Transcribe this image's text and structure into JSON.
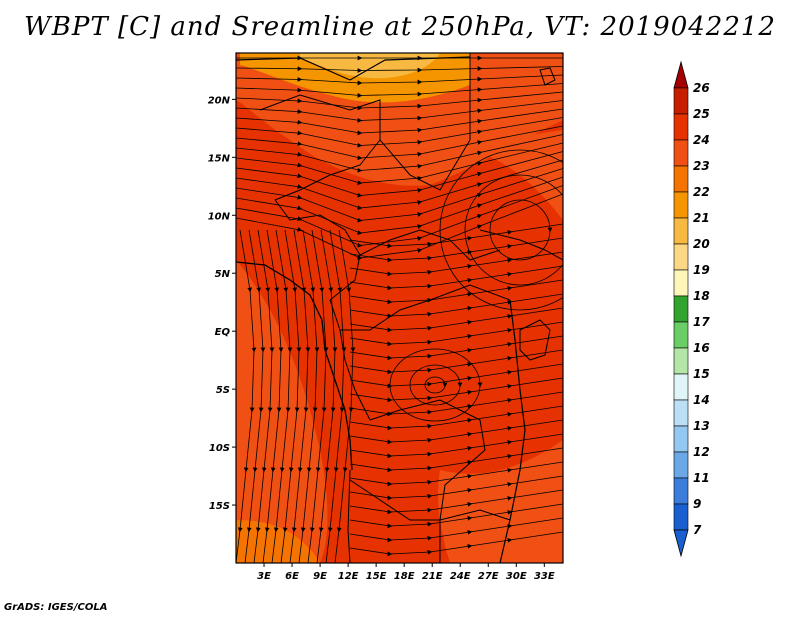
{
  "title": "WBPT [C] and Sreamline at 250hPa, VT: 2019042212",
  "credit": "GrADS: IGES/COLA",
  "axes": {
    "lat_labels": [
      "20N",
      "15N",
      "10N",
      "5N",
      "EQ",
      "5S",
      "10S",
      "15S"
    ],
    "lat_values": [
      20,
      15,
      10,
      5,
      0,
      -5,
      -10,
      -15
    ],
    "lon_labels": [
      "3E",
      "6E",
      "9E",
      "12E",
      "15E",
      "18E",
      "21E",
      "24E",
      "27E",
      "30E",
      "33E"
    ],
    "lon_values": [
      3,
      6,
      9,
      12,
      15,
      18,
      21,
      24,
      27,
      30,
      33
    ],
    "lon_range": [
      0,
      35
    ],
    "lat_range": [
      -20,
      24
    ]
  },
  "colorbar": {
    "labels": [
      "26",
      "25",
      "24",
      "23",
      "22",
      "21",
      "20",
      "19",
      "18",
      "17",
      "16",
      "15",
      "14",
      "13",
      "12",
      "11",
      "9",
      "7"
    ],
    "colors": [
      "#a50000",
      "#c81e00",
      "#e63200",
      "#f05014",
      "#f57300",
      "#f59600",
      "#f7b941",
      "#fbd886",
      "#fef5b9",
      "#33a32f",
      "#6acd65",
      "#b4e6a7",
      "#e0f5f7",
      "#bbe0f5",
      "#95c8f0",
      "#6aa8e8",
      "#3c7ddc",
      "#1a5fd0"
    ]
  },
  "field_colors": {
    "warm_dominant": "#e63200",
    "warm_mid": "#f05014",
    "warm_light": "#f57300",
    "warm_pale": "#f59600",
    "warm_yellow": "#f7b941"
  }
}
